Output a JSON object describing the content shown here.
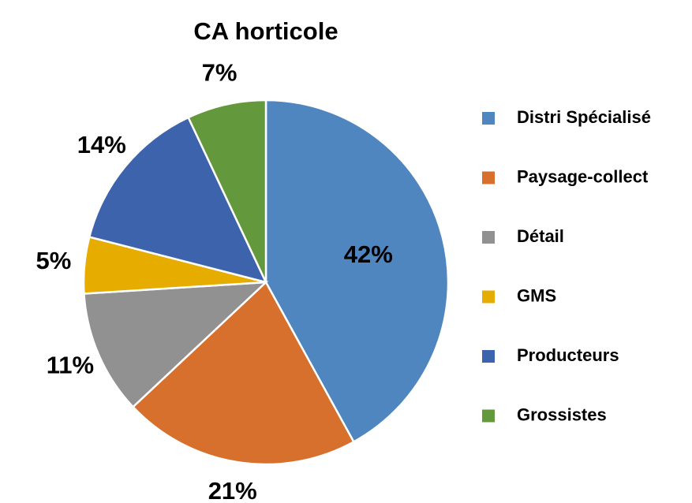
{
  "chart_data": {
    "type": "pie",
    "title": "CA horticole",
    "categories": [
      "Distri Spécialisé",
      "Paysage-collect",
      "Détail",
      "GMS",
      "Producteurs",
      "Grossistes"
    ],
    "values": [
      42,
      21,
      11,
      5,
      14,
      7
    ],
    "value_labels": [
      "42%",
      "21%",
      "11%",
      "5%",
      "14%",
      "7%"
    ],
    "colors": [
      "#4f86c0",
      "#d6702c",
      "#919191",
      "#e6ac00",
      "#3d63ad",
      "#63993c"
    ],
    "legend": "right"
  }
}
